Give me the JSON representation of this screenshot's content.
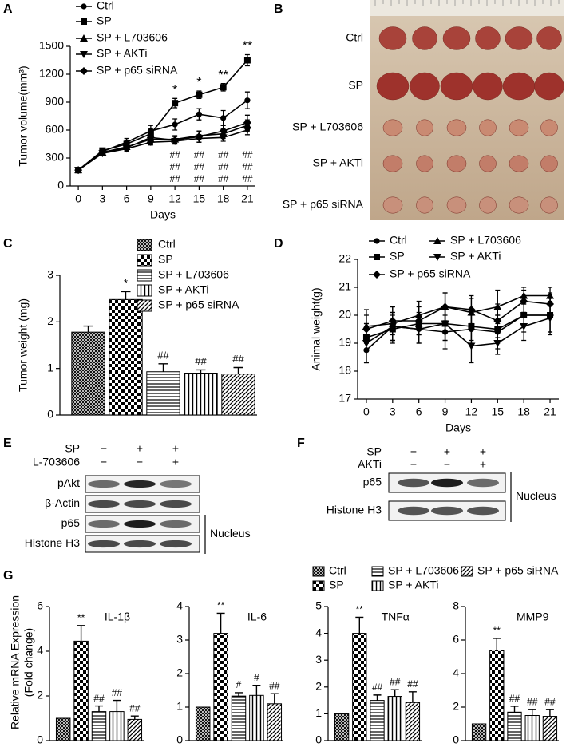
{
  "panel_letters": [
    "A",
    "B",
    "C",
    "D",
    "E",
    "F",
    "G"
  ],
  "chart_data": [
    {
      "type": "line",
      "ylabel": "Tumor volume(mm³)",
      "xlabel": "Days",
      "x": [
        0,
        3,
        6,
        9,
        12,
        15,
        18,
        21
      ],
      "xlim": [
        -1,
        22
      ],
      "xticks": [
        0,
        3,
        6,
        9,
        12,
        15,
        18,
        21
      ],
      "ylim": [
        0,
        1500
      ],
      "yticks": [
        0,
        300,
        600,
        900,
        1200,
        1500
      ],
      "series": [
        {
          "name": "Ctrl",
          "marker": "circle",
          "color": "#000000",
          "values": [
            170,
            370,
            470,
            590,
            660,
            770,
            730,
            920
          ],
          "errors": [
            20,
            25,
            40,
            60,
            60,
            60,
            80,
            90
          ]
        },
        {
          "name": "SP",
          "marker": "square",
          "color": "#000000",
          "values": [
            170,
            380,
            450,
            560,
            890,
            980,
            1060,
            1350
          ],
          "errors": [
            20,
            25,
            40,
            50,
            50,
            40,
            40,
            60
          ],
          "annotations": [
            null,
            null,
            null,
            null,
            "*",
            "*",
            "**",
            "**"
          ]
        },
        {
          "name": "SP + L703606",
          "marker": "triangle-up",
          "color": "#000000",
          "values": [
            170,
            360,
            420,
            500,
            500,
            540,
            560,
            650
          ],
          "errors": [
            20,
            20,
            30,
            40,
            40,
            40,
            50,
            60
          ],
          "annotations": [
            null,
            null,
            null,
            null,
            "##",
            "##",
            "##",
            "##"
          ]
        },
        {
          "name": "SP + AKTi",
          "marker": "triangle-down",
          "color": "#000000",
          "values": [
            170,
            350,
            400,
            470,
            480,
            510,
            520,
            600
          ],
          "errors": [
            20,
            20,
            30,
            30,
            30,
            40,
            40,
            50
          ],
          "annotations": [
            null,
            null,
            null,
            null,
            "##",
            "##",
            "##",
            "##"
          ]
        },
        {
          "name": "SP + p65 siRNA",
          "marker": "diamond",
          "color": "#000000",
          "values": [
            170,
            360,
            410,
            520,
            490,
            530,
            590,
            680
          ],
          "errors": [
            20,
            25,
            30,
            50,
            40,
            60,
            60,
            80
          ],
          "annotations": [
            null,
            null,
            null,
            null,
            "##",
            "##",
            "##",
            "##"
          ]
        }
      ]
    },
    {
      "type": "bar",
      "ylabel": "Tumor weight (mg)",
      "categories": [
        "Ctrl",
        "SP",
        "SP + L703606",
        "SP + AKTi",
        "SP + p65 siRNA"
      ],
      "patterns": [
        "crosshatch",
        "checker",
        "horizontal",
        "vertical",
        "diagonal"
      ],
      "values": [
        1.78,
        2.48,
        0.93,
        0.9,
        0.88
      ],
      "errors": [
        0.13,
        0.17,
        0.17,
        0.07,
        0.14
      ],
      "annotations": [
        null,
        "*",
        "##",
        "##",
        "##"
      ],
      "ylim": [
        0,
        3
      ],
      "yticks": [
        0,
        1,
        2,
        3
      ]
    },
    {
      "type": "line",
      "ylabel": "Animal weight(g)",
      "xlabel": "Days",
      "x": [
        0,
        3,
        6,
        9,
        12,
        15,
        18,
        21
      ],
      "xlim": [
        -1,
        22
      ],
      "xticks": [
        0,
        3,
        6,
        9,
        12,
        15,
        18,
        21
      ],
      "ylim": [
        17,
        22
      ],
      "yticks": [
        17,
        18,
        19,
        20,
        21,
        22
      ],
      "series": [
        {
          "name": "Ctrl",
          "marker": "circle",
          "color": "#000000",
          "values": [
            18.75,
            19.6,
            19.5,
            19.4,
            19.5,
            19.4,
            20.0,
            20.0
          ],
          "errors": [
            0.45,
            0.5,
            0.5,
            0.6,
            0.5,
            0.6,
            0.6,
            0.6
          ]
        },
        {
          "name": "SP",
          "marker": "square",
          "color": "#000000",
          "values": [
            19.2,
            19.5,
            19.7,
            19.7,
            19.6,
            19.5,
            20.0,
            20.0
          ],
          "errors": [
            0.5,
            0.5,
            0.4,
            0.6,
            0.5,
            0.5,
            0.4,
            0.6
          ]
        },
        {
          "name": "SP + L703606",
          "marker": "triangle-up",
          "color": "#000000",
          "values": [
            19.6,
            19.7,
            20.0,
            20.3,
            20.1,
            20.3,
            20.7,
            20.7
          ],
          "errors": [
            0.6,
            0.6,
            0.5,
            0.5,
            0.5,
            0.6,
            0.3,
            0.3
          ]
        },
        {
          "name": "SP + AKTi",
          "marker": "triangle-down",
          "color": "#000000",
          "values": [
            19.0,
            19.6,
            19.5,
            19.7,
            18.9,
            19.0,
            19.6,
            19.9
          ],
          "errors": [
            0.7,
            0.5,
            0.5,
            0.6,
            0.6,
            0.4,
            0.5,
            0.6
          ]
        },
        {
          "name": "SP + p65 siRNA",
          "marker": "diamond",
          "color": "#000000",
          "values": [
            19.5,
            19.8,
            19.8,
            20.3,
            20.2,
            19.8,
            20.5,
            20.4
          ],
          "errors": [
            0.5,
            0.5,
            0.5,
            0.5,
            0.5,
            0.6,
            0.4,
            0.4
          ]
        }
      ]
    },
    {
      "type": "bar-panels",
      "ylabel": [
        "Relative mRNA Expression",
        "(Fold change)"
      ],
      "categories": [
        "Ctrl",
        "SP",
        "SP + L703606",
        "SP + AKTi",
        "SP + p65 siRNA"
      ],
      "patterns": [
        "crosshatch",
        "checker",
        "horizontal",
        "vertical",
        "diagonal"
      ],
      "panels": [
        {
          "title": "IL-1β",
          "ylim": [
            0,
            6
          ],
          "yticks": [
            0,
            2,
            4,
            6
          ],
          "values": [
            1,
            4.45,
            1.3,
            1.3,
            0.95
          ],
          "errors": [
            null,
            0.7,
            0.25,
            0.5,
            0.15
          ],
          "annotations": [
            null,
            "**",
            "##",
            "##",
            "##"
          ]
        },
        {
          "title": "IL-6",
          "ylim": [
            0,
            4
          ],
          "yticks": [
            0,
            1,
            2,
            3,
            4
          ],
          "values": [
            1,
            3.2,
            1.33,
            1.35,
            1.1
          ],
          "errors": [
            null,
            0.6,
            0.1,
            0.3,
            0.3
          ],
          "annotations": [
            null,
            "**",
            "#",
            "#",
            "##"
          ]
        },
        {
          "title": "TNFα",
          "ylim": [
            0,
            5
          ],
          "yticks": [
            0,
            1,
            2,
            3,
            4,
            5
          ],
          "values": [
            1,
            4.0,
            1.5,
            1.65,
            1.42
          ],
          "errors": [
            null,
            0.6,
            0.2,
            0.25,
            0.4
          ],
          "annotations": [
            null,
            "**",
            "##",
            "##",
            "##"
          ]
        },
        {
          "title": "MMP9",
          "ylim": [
            0,
            8
          ],
          "yticks": [
            0,
            2,
            4,
            6,
            8
          ],
          "values": [
            1,
            5.4,
            1.7,
            1.5,
            1.45
          ],
          "errors": [
            null,
            0.7,
            0.35,
            0.35,
            0.4
          ],
          "annotations": [
            null,
            "**",
            "##",
            "##",
            "##"
          ]
        }
      ]
    }
  ],
  "photo": {
    "labels": [
      "Ctrl",
      "SP",
      "SP + L703606",
      "SP + AKTi",
      "SP + p65 siRNA"
    ]
  },
  "blot_e": {
    "conditions": [
      {
        "label": "SP",
        "signs": [
          "−",
          "+",
          "+"
        ]
      },
      {
        "label": "L-703606",
        "signs": [
          "−",
          "−",
          "+"
        ]
      }
    ],
    "rows": [
      "pAkt",
      "β-Actin",
      "p65",
      "Histone H3"
    ],
    "bracket": "Nucleus"
  },
  "blot_f": {
    "conditions": [
      {
        "label": "SP",
        "signs": [
          "−",
          "+",
          "+"
        ]
      },
      {
        "label": "AKTi",
        "signs": [
          "−",
          "−",
          "+"
        ]
      }
    ],
    "rows": [
      "p65",
      "Histone H3"
    ],
    "bracket": "Nucleus"
  }
}
